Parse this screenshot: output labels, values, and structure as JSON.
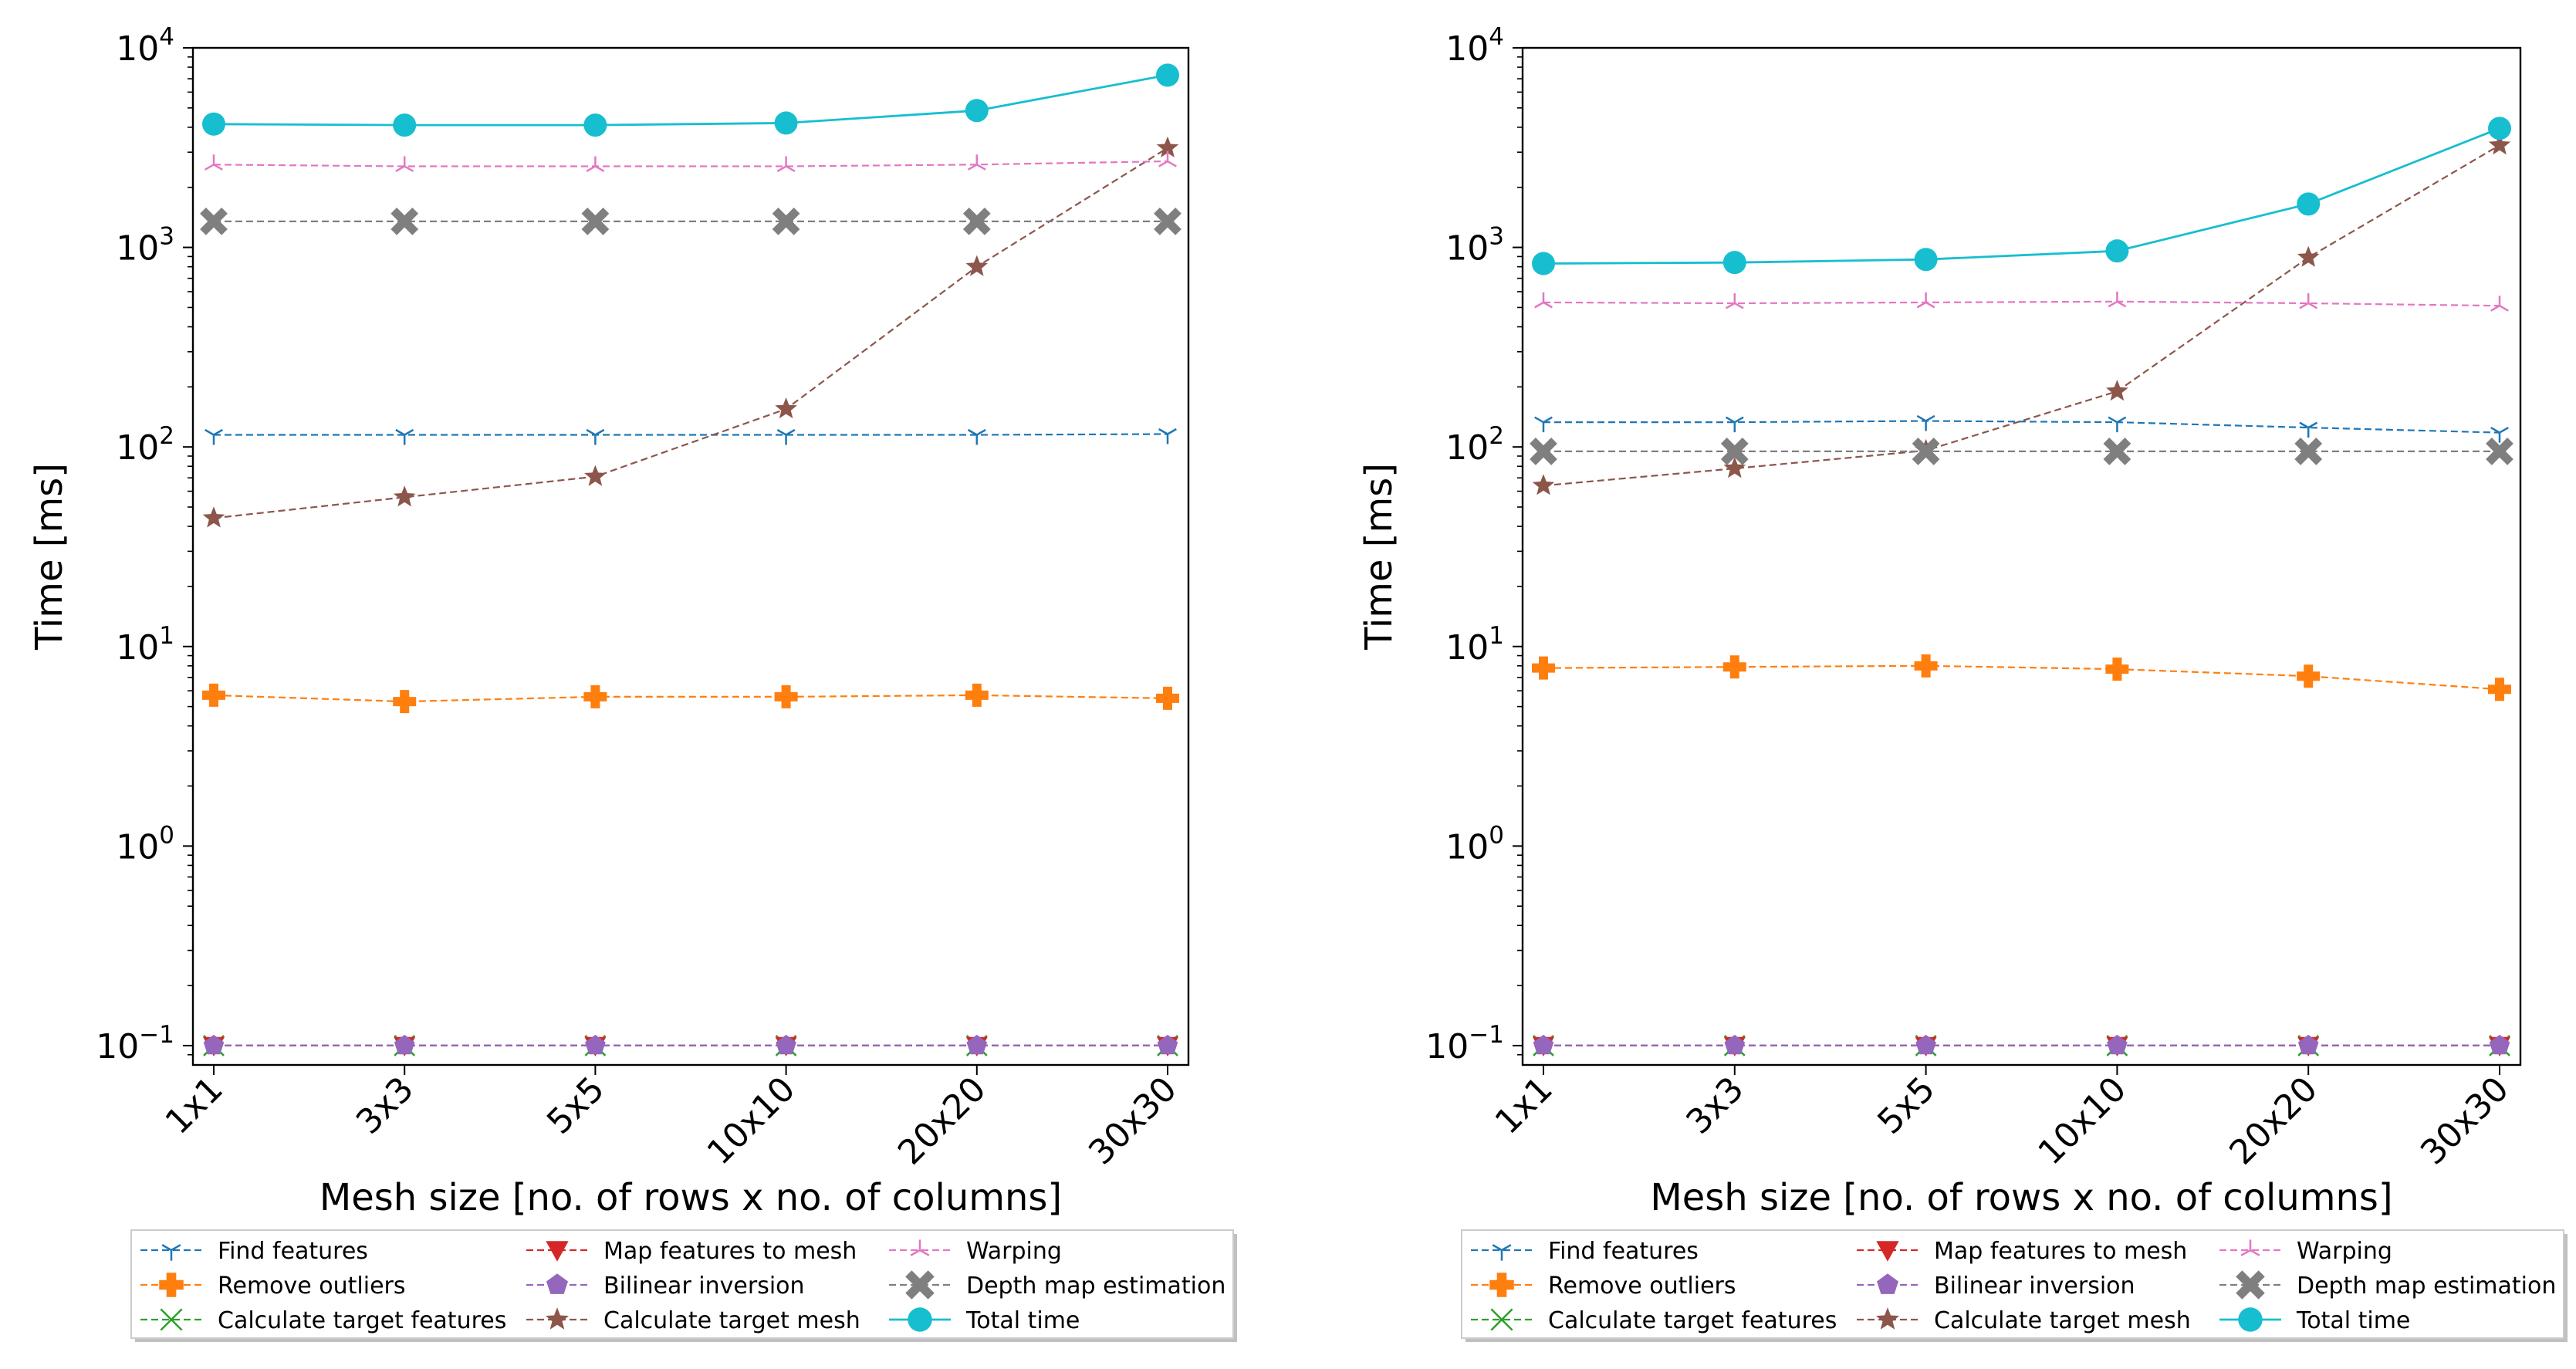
{
  "chart_data": [
    {
      "type": "line",
      "scale": "log",
      "xlabel": "Mesh size [no. of rows x no. of columns]",
      "ylabel": "Time [ms]",
      "ylim": [
        0.08,
        10000
      ],
      "ymin_ticks": [
        {
          "value": 0.1,
          "base": "10",
          "exp": "−1"
        },
        {
          "value": 1,
          "base": "10",
          "exp": "0"
        },
        {
          "value": 10,
          "base": "10",
          "exp": "1"
        },
        {
          "value": 100,
          "base": "10",
          "exp": "2"
        },
        {
          "value": 1000,
          "base": "10",
          "exp": "3"
        },
        {
          "value": 10000,
          "base": "10",
          "exp": "4"
        }
      ],
      "categories": [
        "1x1",
        "3x3",
        "5x5",
        "10x10",
        "20x20",
        "30x30"
      ],
      "legend_position": "below",
      "series": [
        {
          "name": "Find features",
          "color": "#1f77b4",
          "marker": "tri_down",
          "dash": true,
          "values": [
            115,
            115,
            115,
            115,
            115,
            116
          ]
        },
        {
          "name": "Remove outliers",
          "color": "#ff7f0e",
          "marker": "plus",
          "dash": true,
          "values": [
            5.7,
            5.3,
            5.6,
            5.6,
            5.7,
            5.5
          ]
        },
        {
          "name": "Calculate target features",
          "color": "#2ca02c",
          "marker": "x",
          "dash": true,
          "values": [
            0.1,
            0.1,
            0.1,
            0.1,
            0.1,
            0.1
          ]
        },
        {
          "name": "Map features to mesh",
          "color": "#d62728",
          "marker": "triangle_down",
          "dash": true,
          "values": [
            0.1,
            0.1,
            0.1,
            0.1,
            0.1,
            0.1
          ]
        },
        {
          "name": "Bilinear inversion",
          "color": "#9467bd",
          "marker": "pentagon",
          "dash": true,
          "values": [
            0.1,
            0.1,
            0.1,
            0.1,
            0.1,
            0.1
          ]
        },
        {
          "name": "Calculate target mesh",
          "color": "#8c564b",
          "marker": "star",
          "dash": true,
          "values": [
            44,
            56,
            71,
            155,
            800,
            3150
          ]
        },
        {
          "name": "Warping",
          "color": "#e377c2",
          "marker": "tri_up",
          "dash": true,
          "values": [
            2600,
            2550,
            2550,
            2550,
            2600,
            2700
          ]
        },
        {
          "name": "Depth map estimation",
          "color": "#7f7f7f",
          "marker": "X",
          "dash": true,
          "values": [
            1350,
            1350,
            1350,
            1350,
            1350,
            1350
          ]
        },
        {
          "name": "Total time",
          "color": "#17becf",
          "marker": "circle",
          "dash": false,
          "values": [
            4150,
            4100,
            4100,
            4200,
            4850,
            7300
          ]
        }
      ]
    },
    {
      "type": "line",
      "scale": "log",
      "xlabel": "Mesh size [no. of rows x no. of columns]",
      "ylabel": "Time [ms]",
      "ylim": [
        0.08,
        10000
      ],
      "ymin_ticks": [
        {
          "value": 0.1,
          "base": "10",
          "exp": "−1"
        },
        {
          "value": 1,
          "base": "10",
          "exp": "0"
        },
        {
          "value": 10,
          "base": "10",
          "exp": "1"
        },
        {
          "value": 100,
          "base": "10",
          "exp": "2"
        },
        {
          "value": 1000,
          "base": "10",
          "exp": "3"
        },
        {
          "value": 10000,
          "base": "10",
          "exp": "4"
        }
      ],
      "categories": [
        "1x1",
        "3x3",
        "5x5",
        "10x10",
        "20x20",
        "30x30"
      ],
      "legend_position": "below",
      "series": [
        {
          "name": "Find features",
          "color": "#1f77b4",
          "marker": "tri_down",
          "dash": true,
          "values": [
            133,
            133,
            135,
            133,
            125,
            118
          ]
        },
        {
          "name": "Remove outliers",
          "color": "#ff7f0e",
          "marker": "plus",
          "dash": true,
          "values": [
            7.8,
            7.9,
            8.0,
            7.7,
            7.1,
            6.1
          ]
        },
        {
          "name": "Calculate target features",
          "color": "#2ca02c",
          "marker": "x",
          "dash": true,
          "values": [
            0.1,
            0.1,
            0.1,
            0.1,
            0.1,
            0.1
          ]
        },
        {
          "name": "Map features to mesh",
          "color": "#d62728",
          "marker": "triangle_down",
          "dash": true,
          "values": [
            0.1,
            0.1,
            0.1,
            0.1,
            0.1,
            0.1
          ]
        },
        {
          "name": "Bilinear inversion",
          "color": "#9467bd",
          "marker": "pentagon",
          "dash": true,
          "values": [
            0.1,
            0.1,
            0.1,
            0.1,
            0.1,
            0.1
          ]
        },
        {
          "name": "Calculate target mesh",
          "color": "#8c564b",
          "marker": "star",
          "dash": true,
          "values": [
            64,
            78,
            96,
            190,
            890,
            3250
          ]
        },
        {
          "name": "Warping",
          "color": "#e377c2",
          "marker": "tri_up",
          "dash": true,
          "values": [
            530,
            525,
            530,
            535,
            525,
            510
          ]
        },
        {
          "name": "Depth map estimation",
          "color": "#7f7f7f",
          "marker": "X",
          "dash": true,
          "values": [
            95,
            95,
            95,
            95,
            95,
            95
          ]
        },
        {
          "name": "Total time",
          "color": "#17becf",
          "marker": "circle",
          "dash": false,
          "values": [
            830,
            840,
            870,
            960,
            1650,
            3950
          ]
        }
      ]
    }
  ]
}
